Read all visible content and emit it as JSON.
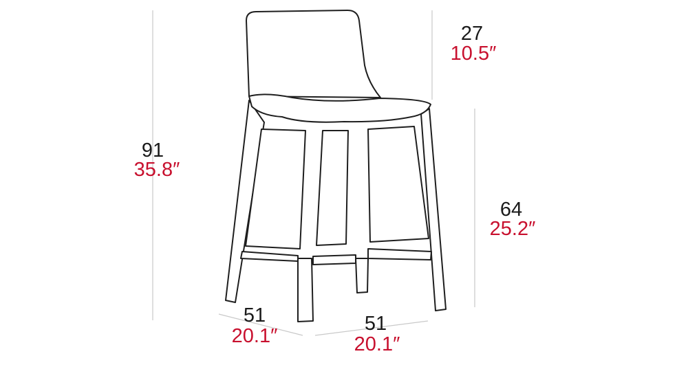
{
  "dimensions": [
    {
      "cm": "91",
      "inches": "35.8″"
    },
    {
      "cm": "27",
      "inches": "10.5″"
    },
    {
      "cm": "64",
      "inches": "25.2″"
    },
    {
      "cm": "51",
      "inches": "20.1″"
    },
    {
      "cm": "51",
      "inches": "20.1″"
    }
  ]
}
